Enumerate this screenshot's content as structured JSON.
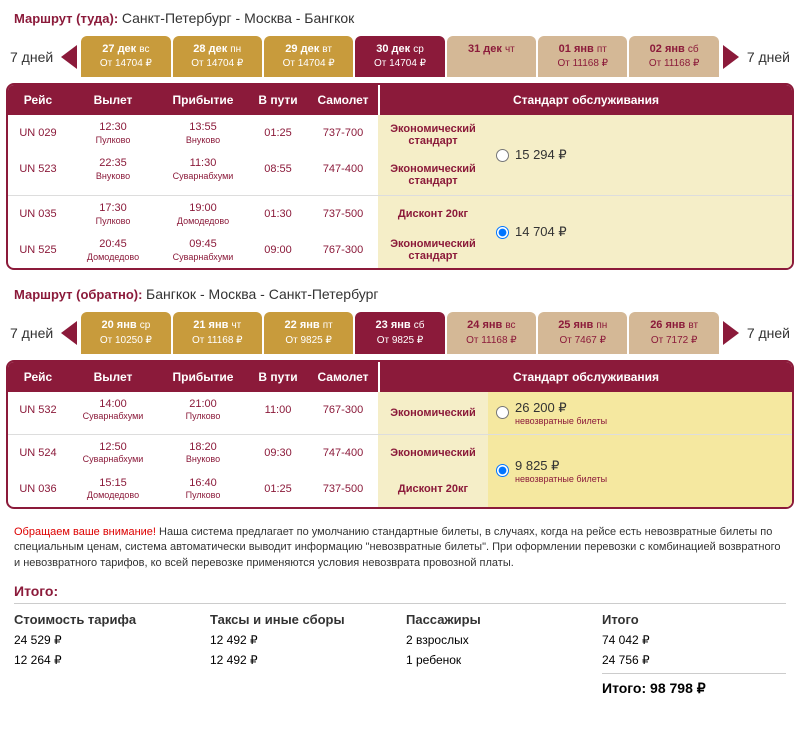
{
  "outbound": {
    "label": "Маршрут (туда):",
    "route": "Санкт-Петербург - Москва - Бангкок",
    "navDays": "7 дней",
    "dates": [
      {
        "date": "27 дек",
        "dow": "вс",
        "price": "От 14704 ₽",
        "style": "gold"
      },
      {
        "date": "28 дек",
        "dow": "пн",
        "price": "От 14704 ₽",
        "style": "gold"
      },
      {
        "date": "29 дек",
        "dow": "вт",
        "price": "От 14704 ₽",
        "style": "gold"
      },
      {
        "date": "30 дек",
        "dow": "ср",
        "price": "От 14704 ₽",
        "style": "dark"
      },
      {
        "date": "31 дек",
        "dow": "чт",
        "price": "",
        "style": "tan"
      },
      {
        "date": "01 янв",
        "dow": "пт",
        "price": "От 11168 ₽",
        "style": "tan"
      },
      {
        "date": "02 янв",
        "dow": "сб",
        "price": "От 11168 ₽",
        "style": "tan"
      }
    ],
    "headers": {
      "flight": "Рейс",
      "dep": "Вылет",
      "arr": "Прибытие",
      "dur": "В пути",
      "plane": "Самолет",
      "service": "Стандарт обслуживания"
    },
    "groups": [
      {
        "flights": [
          {
            "num": "UN 029",
            "depTime": "12:30",
            "depAp": "Пулково",
            "arrTime": "13:55",
            "arrAp": "Внуково",
            "dur": "01:25",
            "plane": "737-700"
          },
          {
            "num": "UN 523",
            "depTime": "22:35",
            "depAp": "Внуково",
            "arrTime": "11:30",
            "arrAp": "Суварнабхуми",
            "dur": "08:55",
            "plane": "747-400"
          }
        ],
        "services": [
          {
            "label1": "Экономический",
            "label2": "стандарт"
          },
          {
            "label1": "Экономический",
            "label2": "стандарт"
          }
        ],
        "price": {
          "val": "15 294 ₽",
          "selected": false,
          "note": ""
        }
      },
      {
        "flights": [
          {
            "num": "UN 035",
            "depTime": "17:30",
            "depAp": "Пулково",
            "arrTime": "19:00",
            "arrAp": "Домодедово",
            "dur": "01:30",
            "plane": "737-500"
          },
          {
            "num": "UN 525",
            "depTime": "20:45",
            "depAp": "Домодедово",
            "arrTime": "09:45",
            "arrAp": "Суварнабхуми",
            "dur": "09:00",
            "plane": "767-300"
          }
        ],
        "services": [
          {
            "label1": "Дисконт 20кг",
            "label2": ""
          },
          {
            "label1": "Экономический",
            "label2": "стандарт"
          }
        ],
        "price": {
          "val": "14 704 ₽",
          "selected": true,
          "note": ""
        }
      }
    ]
  },
  "return": {
    "label": "Маршрут (обратно):",
    "route": "Бангкок - Москва - Санкт-Петербург",
    "navDays": "7 дней",
    "dates": [
      {
        "date": "20 янв",
        "dow": "ср",
        "price": "От 10250 ₽",
        "style": "gold"
      },
      {
        "date": "21 янв",
        "dow": "чт",
        "price": "От 11168 ₽",
        "style": "gold"
      },
      {
        "date": "22 янв",
        "dow": "пт",
        "price": "От 9825 ₽",
        "style": "gold"
      },
      {
        "date": "23 янв",
        "dow": "сб",
        "price": "От 9825 ₽",
        "style": "dark"
      },
      {
        "date": "24 янв",
        "dow": "вс",
        "price": "От 11168 ₽",
        "style": "tan"
      },
      {
        "date": "25 янв",
        "dow": "пн",
        "price": "От 7467 ₽",
        "style": "tan"
      },
      {
        "date": "26 янв",
        "dow": "вт",
        "price": "От 7172 ₽",
        "style": "tan"
      }
    ],
    "headers": {
      "flight": "Рейс",
      "dep": "Вылет",
      "arr": "Прибытие",
      "dur": "В пути",
      "plane": "Самолет",
      "service": "Стандарт обслуживания"
    },
    "groups": [
      {
        "flights": [
          {
            "num": "UN 532",
            "depTime": "14:00",
            "depAp": "Суварнабхуми",
            "arrTime": "21:00",
            "arrAp": "Пулково",
            "dur": "11:00",
            "plane": "767-300"
          }
        ],
        "services": [
          {
            "label1": "Экономический",
            "label2": ""
          }
        ],
        "price": {
          "val": "26 200 ₽",
          "selected": false,
          "note": "невозвратные билеты",
          "highlight": true
        }
      },
      {
        "flights": [
          {
            "num": "UN 524",
            "depTime": "12:50",
            "depAp": "Суварнабхуми",
            "arrTime": "18:20",
            "arrAp": "Внуково",
            "dur": "09:30",
            "plane": "747-400"
          },
          {
            "num": "UN 036",
            "depTime": "15:15",
            "depAp": "Домодедово",
            "arrTime": "16:40",
            "arrAp": "Пулково",
            "dur": "01:25",
            "plane": "737-500"
          }
        ],
        "services": [
          {
            "label1": "Экономический",
            "label2": ""
          },
          {
            "label1": "Дисконт 20кг",
            "label2": ""
          }
        ],
        "price": {
          "val": "9 825 ₽",
          "selected": true,
          "note": "невозвратные билеты",
          "highlight": true
        }
      }
    ]
  },
  "notice": {
    "label": "Обращаем ваше внимание!",
    "text": " Наша система предлагает по умолчанию стандартные билеты, в случаях, когда на рейсе есть невозвратные билеты по специальным ценам, система автоматически выводит информацию \"невозвратные билеты\". При оформлении перевозки с комбинацией возвратного и невозвратного тарифов, ко всей перевозке применяются условия невозврата провозной платы."
  },
  "totals": {
    "title": "Итого:",
    "head": {
      "tariff": "Стоимость тарифа",
      "taxes": "Таксы и иные сборы",
      "pax": "Пассажиры",
      "total": "Итого"
    },
    "rows": [
      {
        "tariff": "24 529 ₽",
        "taxes": "12 492 ₽",
        "pax": "2 взрослых",
        "total": "74 042 ₽"
      },
      {
        "tariff": "12 264 ₽",
        "taxes": "12 492 ₽",
        "pax": "1 ребенок",
        "total": "24 756 ₽"
      }
    ],
    "finalLabel": "Итого:",
    "final": "98 798 ₽"
  }
}
